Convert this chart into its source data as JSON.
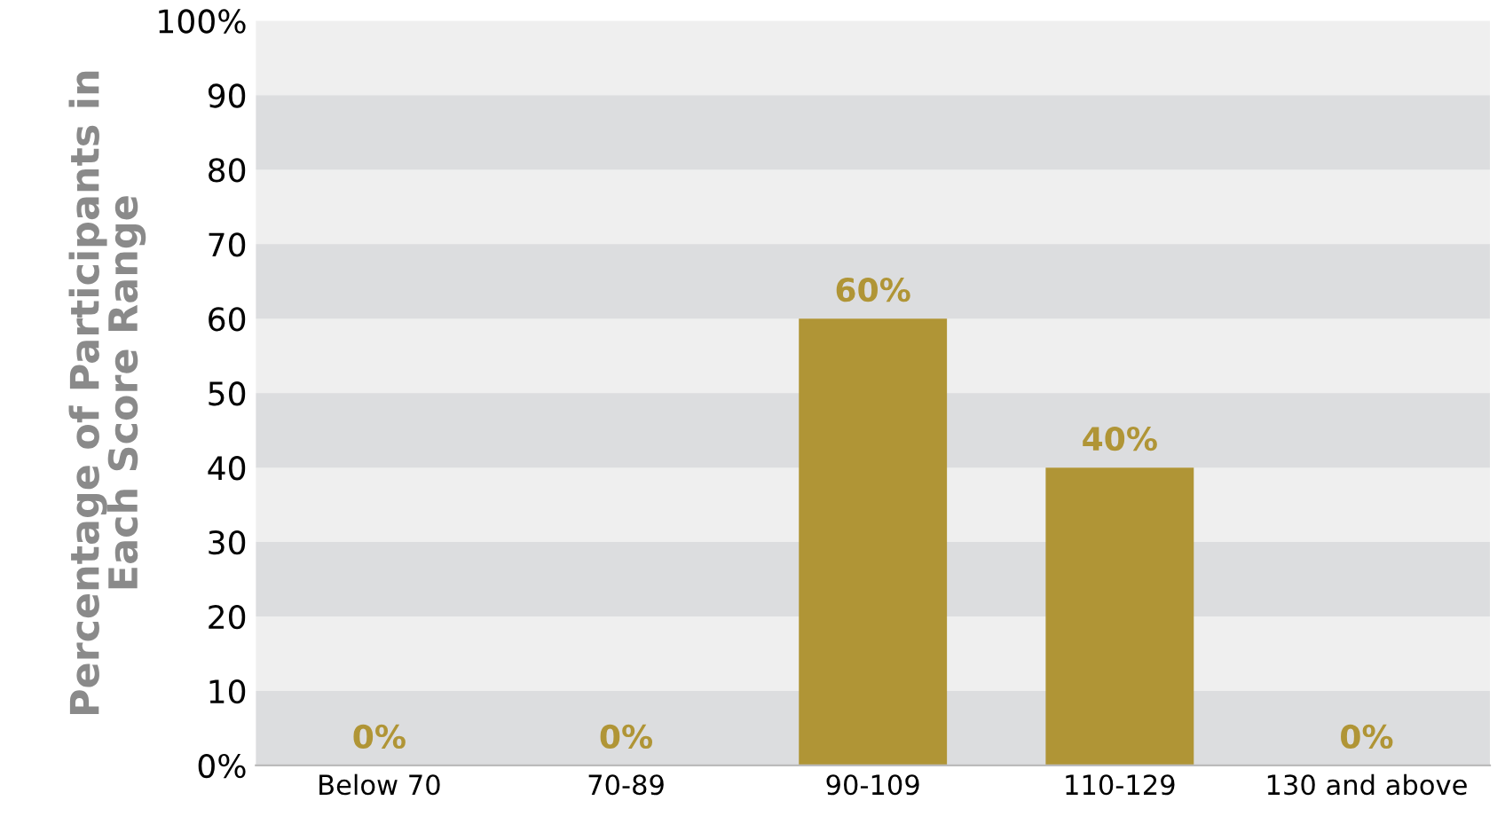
{
  "chart_data": {
    "type": "bar",
    "ylabel": "Percentage of Participants in\nEach Score Range",
    "categories": [
      "Below 70",
      "70-89",
      "90-109",
      "110-129",
      "130 and above"
    ],
    "values": [
      0,
      0,
      60,
      40,
      0
    ],
    "color": "#b09536",
    "value_labels": [
      "0%",
      "0%",
      "60%",
      "40%",
      "0%"
    ],
    "ylim": [
      0,
      100
    ],
    "yticks": [
      {
        "value": 0,
        "label": "0%"
      },
      10,
      20,
      30,
      40,
      50,
      60,
      70,
      80,
      90,
      {
        "value": 100,
        "label": "100%"
      }
    ],
    "bands": [
      {
        "axis": "y",
        "from": 0,
        "to": 10,
        "color": "#dcdddf"
      },
      {
        "axis": "y",
        "from": 20,
        "to": 30,
        "color": "#dcdddf"
      },
      {
        "axis": "y",
        "from": 40,
        "to": 50,
        "color": "#dcdddf"
      },
      {
        "axis": "y",
        "from": 60,
        "to": 70,
        "color": "#dcdddf"
      },
      {
        "axis": "y",
        "from": 80,
        "to": 90,
        "color": "#dcdddf"
      }
    ],
    "grid": false,
    "legend": false
  }
}
